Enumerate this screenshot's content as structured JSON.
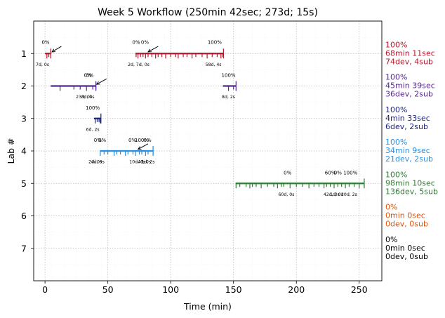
{
  "chart_data": {
    "type": "timeline",
    "title": "Week 5 Workflow (250min 42sec; 273d; 15s)",
    "xlabel": "Time (min)",
    "ylabel": "Lab #",
    "xlim": [
      -9,
      268
    ],
    "ylim": [
      8,
      0
    ],
    "xticks": [
      0,
      50,
      100,
      150,
      200,
      250
    ],
    "yticks": [
      1,
      2,
      3,
      4,
      5,
      6,
      7
    ],
    "grid": true,
    "lanes": [
      {
        "lab": 1,
        "color": "#b2182b",
        "segments": [
          {
            "start": 0,
            "end": 4.5
          },
          {
            "start": 72,
            "end": 142
          }
        ],
        "ticks": [
          1.5,
          3,
          72.5,
          74,
          76,
          78,
          80,
          82,
          85,
          88,
          90,
          93,
          96,
          100,
          104,
          106,
          110,
          113,
          117,
          120,
          125,
          129,
          133,
          137,
          140,
          141.5
        ],
        "pct_labels": [
          {
            "x": 0.5,
            "y": 0.7,
            "text": "0%"
          },
          {
            "x": 72.5,
            "y": 0.7,
            "text": "0%"
          },
          {
            "x": 79.5,
            "y": 0.7,
            "text": "0%"
          },
          {
            "x": 135,
            "y": 0.7,
            "text": "100%"
          }
        ],
        "counts": [
          {
            "x": -2,
            "y": 1.38,
            "text": "7d, 0s"
          },
          {
            "x": 74.5,
            "y": 1.38,
            "text": "2d, 7d, 0s"
          },
          {
            "x": 134,
            "y": 1.38,
            "text": "58d, 4s"
          }
        ],
        "arrows": [
          {
            "from": [
              13,
              0.78
            ],
            "to": [
              5.5,
              0.95
            ]
          },
          {
            "from": [
              90,
              0.78
            ],
            "to": [
              82,
              0.95
            ]
          }
        ],
        "summary": [
          "100%",
          "68min 11sec",
          "74dev, 4sub"
        ]
      },
      {
        "lab": 2,
        "color": "#54278f",
        "segments": [
          {
            "start": 4.5,
            "end": 40.5
          },
          {
            "start": 141.5,
            "end": 152
          }
        ],
        "ticks": [
          12,
          23,
          28,
          33,
          38,
          40.5,
          146,
          150
        ],
        "pct_labels": [
          {
            "x": 34,
            "y": 1.72,
            "text": "0%"
          },
          {
            "x": 35.5,
            "y": 1.72,
            "text": "0%"
          },
          {
            "x": 146,
            "y": 1.72,
            "text": "100%"
          }
        ],
        "counts": [
          {
            "x": 31,
            "y": 2.38,
            "text": "23d, 0s"
          },
          {
            "x": 34,
            "y": 2.38,
            "text": "3d, 0s"
          },
          {
            "x": 146,
            "y": 2.38,
            "text": "8d, 2s"
          }
        ],
        "arrows": [
          {
            "from": [
              49,
              1.78
            ],
            "to": [
              41,
              1.95
            ]
          }
        ],
        "summary": [
          "100%",
          "45min 39sec",
          "36dev, 2sub"
        ]
      },
      {
        "lab": 3,
        "color": "#1a237e",
        "segments": [
          {
            "start": 39,
            "end": 44.5
          }
        ],
        "ticks": [
          40,
          41.5,
          43,
          44
        ],
        "pct_labels": [
          {
            "x": 38,
            "y": 2.72,
            "text": "100%"
          }
        ],
        "counts": [
          {
            "x": 38,
            "y": 3.38,
            "text": "6d, 2s"
          }
        ],
        "arrows": [],
        "summary": [
          "100%",
          "4min 33sec",
          "6dev, 2sub"
        ]
      },
      {
        "lab": 4,
        "color": "#2b8ee6",
        "segments": [
          {
            "start": 44,
            "end": 86
          }
        ],
        "ticks": [
          44,
          47,
          50,
          55,
          57,
          60,
          64,
          66,
          70,
          72,
          75,
          77,
          80,
          82,
          86
        ],
        "pct_labels": [
          {
            "x": 42,
            "y": 3.72,
            "text": "0%"
          },
          {
            "x": 45.5,
            "y": 3.72,
            "text": "0%"
          },
          {
            "x": 69.5,
            "y": 3.72,
            "text": "0%"
          },
          {
            "x": 77,
            "y": 3.72,
            "text": "100%"
          },
          {
            "x": 81.5,
            "y": 3.72,
            "text": "0%"
          }
        ],
        "counts": [
          {
            "x": 40,
            "y": 4.38,
            "text": "2d, 0s"
          },
          {
            "x": 42,
            "y": 4.38,
            "text": "4d, 0s"
          },
          {
            "x": 73.5,
            "y": 4.38,
            "text": "10d, 0s"
          },
          {
            "x": 79,
            "y": 4.38,
            "text": "4d, 0s"
          },
          {
            "x": 82,
            "y": 4.38,
            "text": "1d, 2s"
          }
        ],
        "arrows": [
          {
            "from": [
              82,
              3.78
            ],
            "to": [
              74,
              3.95
            ]
          }
        ],
        "summary": [
          "100%",
          "34min 9sec",
          "21dev, 2sub"
        ]
      },
      {
        "lab": 5,
        "color": "#2e7d32",
        "segments": [
          {
            "start": 152,
            "end": 254
          }
        ],
        "ticks": [
          152,
          155,
          160,
          163,
          165,
          168,
          172,
          177,
          182,
          185,
          188,
          190,
          195,
          200,
          205,
          210,
          214,
          218,
          222,
          224,
          227,
          230,
          233,
          236,
          239,
          242,
          246,
          250,
          254
        ],
        "pct_labels": [
          {
            "x": 193,
            "y": 4.72,
            "text": "0%"
          },
          {
            "x": 227,
            "y": 4.72,
            "text": "60%"
          },
          {
            "x": 233,
            "y": 4.72,
            "text": "0%"
          },
          {
            "x": 243,
            "y": 4.72,
            "text": "100%"
          }
        ],
        "counts": [
          {
            "x": 192,
            "y": 5.38,
            "text": "60d, 0s"
          },
          {
            "x": 228,
            "y": 5.38,
            "text": "42d, 0s"
          },
          {
            "x": 232,
            "y": 5.38,
            "text": "1d, 0s"
          },
          {
            "x": 242,
            "y": 5.38,
            "text": "20d, 2s"
          }
        ],
        "arrows": [],
        "summary": [
          "100%",
          "98min 10sec",
          "136dev, 5sub"
        ]
      },
      {
        "lab": 6,
        "color": "#e65100",
        "segments": [],
        "ticks": [],
        "pct_labels": [],
        "counts": [],
        "arrows": [],
        "summary": [
          "0%",
          "0min 0sec",
          "0dev, 0sub"
        ]
      },
      {
        "lab": 7,
        "color": "#000000",
        "segments": [],
        "ticks": [],
        "pct_labels": [],
        "counts": [],
        "arrows": [],
        "summary": [
          "0%",
          "0min 0sec",
          "0dev, 0sub"
        ]
      }
    ]
  }
}
